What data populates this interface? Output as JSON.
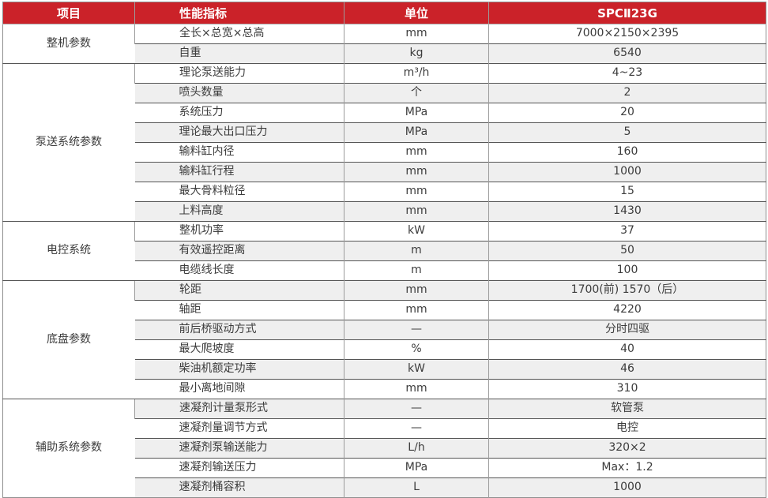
{
  "table": {
    "columns": {
      "item": "项目",
      "indicator": "性能指标",
      "unit": "单位",
      "model": "SPCⅡ23G"
    },
    "sections": [
      {
        "category": "整机参数",
        "rows": [
          {
            "indicator": "全长×总宽×总高",
            "unit": "mm",
            "value": "7000×2150×2395"
          },
          {
            "indicator": "自重",
            "unit": "kg",
            "value": "6540"
          }
        ]
      },
      {
        "category": "泵送系统参数",
        "rows": [
          {
            "indicator": "理论泵送能力",
            "unit": "m³/h",
            "value": "4~23"
          },
          {
            "indicator": "喷头数量",
            "unit": "个",
            "value": "2"
          },
          {
            "indicator": "系统压力",
            "unit": "MPa",
            "value": "20"
          },
          {
            "indicator": "理论最大出口压力",
            "unit": "MPa",
            "value": "5"
          },
          {
            "indicator": "输料缸内径",
            "unit": "mm",
            "value": "160"
          },
          {
            "indicator": "输料缸行程",
            "unit": "mm",
            "value": "1000"
          },
          {
            "indicator": "最大骨料粒径",
            "unit": "mm",
            "value": "15"
          },
          {
            "indicator": "上料高度",
            "unit": "mm",
            "value": "1430"
          }
        ]
      },
      {
        "category": "电控系统",
        "rows": [
          {
            "indicator": "整机功率",
            "unit": "kW",
            "value": "37"
          },
          {
            "indicator": "有效遥控距离",
            "unit": "m",
            "value": "50"
          },
          {
            "indicator": "电缆线长度",
            "unit": "m",
            "value": "100"
          }
        ]
      },
      {
        "category": "底盘参数",
        "rows": [
          {
            "indicator": "轮距",
            "unit": "mm",
            "value": "1700(前) 1570（后）"
          },
          {
            "indicator": "轴距",
            "unit": "mm",
            "value": "4220"
          },
          {
            "indicator": "前后桥驱动方式",
            "unit": "—",
            "value": "分时四驱"
          },
          {
            "indicator": "最大爬坡度",
            "unit": "%",
            "value": "40"
          },
          {
            "indicator": "柴油机额定功率",
            "unit": "kW",
            "value": "46"
          },
          {
            "indicator": "最小离地间隙",
            "unit": "mm",
            "value": "310"
          }
        ]
      },
      {
        "category": "辅助系统参数",
        "rows": [
          {
            "indicator": "速凝剂计量泵形式",
            "unit": "—",
            "value": "软管泵"
          },
          {
            "indicator": "速凝剂量调节方式",
            "unit": "—",
            "value": "电控"
          },
          {
            "indicator": "速凝剂泵输送能力",
            "unit": "L/h",
            "value": "320×2"
          },
          {
            "indicator": "速凝剂输送压力",
            "unit": "MPa",
            "value": "Max：1.2"
          },
          {
            "indicator": "速凝剂桶容积",
            "unit": "L",
            "value": "1000"
          }
        ]
      }
    ]
  },
  "colors": {
    "header_bg": "#cb2229",
    "header_text": "#ffffff",
    "row_bg": "#ffffff",
    "row_alt_bg": "#efefef",
    "border_dark": "#555555",
    "border_light": "#9b9b9b",
    "text": "#3c3c3c"
  }
}
